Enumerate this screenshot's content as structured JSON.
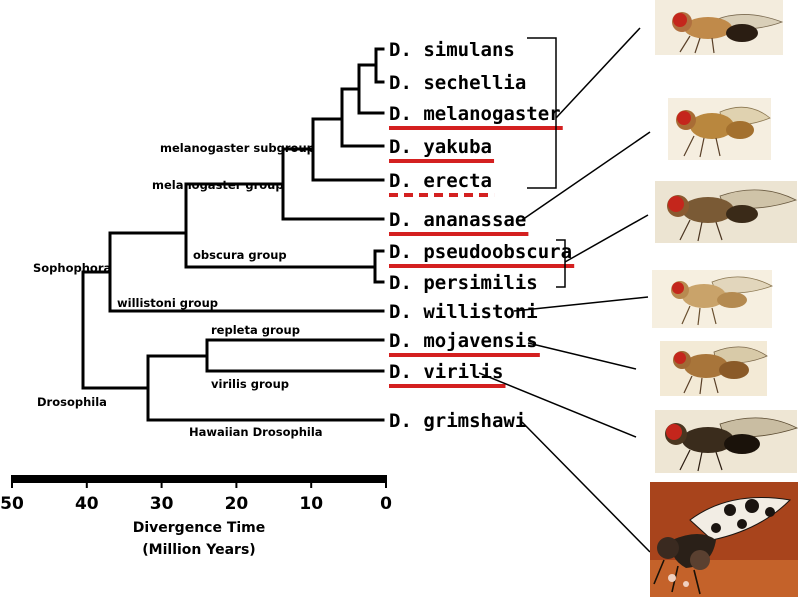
{
  "species": [
    {
      "name": "D. simulans",
      "underline": "none"
    },
    {
      "name": "D. sechellia",
      "underline": "none"
    },
    {
      "name": "D. melanogaster",
      "underline": "solid"
    },
    {
      "name": "D. yakuba",
      "underline": "solid"
    },
    {
      "name": "D. erecta",
      "underline": "dashed"
    },
    {
      "name": "D. ananassae",
      "underline": "solid"
    },
    {
      "name": "D. pseudoobscura",
      "underline": "solid"
    },
    {
      "name": "D. persimilis",
      "underline": "none"
    },
    {
      "name": "D. willistoni",
      "underline": "none"
    },
    {
      "name": "D. mojavensis",
      "underline": "solid"
    },
    {
      "name": "D. virilis",
      "underline": "solid"
    },
    {
      "name": "D. grimshawi",
      "underline": "none"
    }
  ],
  "clades": {
    "melanogaster_subgroup": "melanogaster subgroup",
    "melanogaster_group": "melanogaster group",
    "obscura_group": "obscura group",
    "sophophora": "Sophophora",
    "willistoni_group": "willistoni group",
    "repleta_group": "repleta group",
    "virilis_group": "virilis group",
    "drosophila": "Drosophila",
    "hawaiian": "Hawaiian Drosophila"
  },
  "axis": {
    "ticks": [
      "50",
      "40",
      "30",
      "20",
      "10",
      "0"
    ],
    "title_line1": "Divergence Time",
    "title_line2": "(Million Years)"
  },
  "colors": {
    "underline": "#d42020",
    "tree": "#000000"
  },
  "illustrations": [
    "fly-simulans-group-image",
    "fly-yakuba-image",
    "fly-ananassae-image",
    "fly-willistoni-image",
    "fly-mojavensis-image",
    "fly-virilis-image",
    "fly-grimshawi-photo"
  ]
}
